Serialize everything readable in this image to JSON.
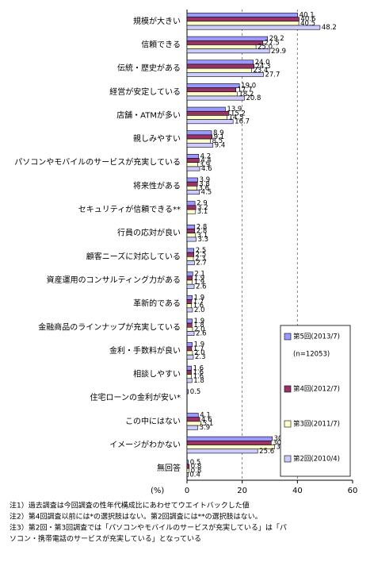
{
  "chart_data": {
    "type": "barh",
    "categories": [
      "規模が大きい",
      "信頼できる",
      "伝統・歴史がある",
      "経営が安定している",
      "店舗・ATMが多い",
      "親しみやすい",
      "パソコンやモバイルのサービスが充実している",
      "将来性がある",
      "セキュリティが信頼できる**",
      "行員の応対が良い",
      "顧客ニーズに対応している",
      "資産運用のコンサルティング力がある",
      "革新的である",
      "金融商品のラインナップが充実している",
      "金利・手数料が良い",
      "相談しやすい",
      "住宅ローンの金利が安い*",
      "この中にはない",
      "イメージがわかない",
      "無回答"
    ],
    "series": [
      {
        "name": "第5回(2013/7)",
        "color": "#9999ff",
        "values": [
          40.1,
          29.2,
          24.0,
          19.0,
          13.9,
          8.9,
          4.2,
          3.9,
          2.9,
          2.8,
          2.5,
          2.1,
          1.9,
          1.9,
          1.9,
          1.6,
          0.5,
          4.1,
          30.9,
          0.5
        ],
        "value_labels": [
          "40.1",
          "29.2",
          "24.0",
          "19.0",
          "13.9",
          "8.9",
          "4.2",
          "3.9",
          "2.9",
          "2.8",
          "2.5",
          "2.1",
          "1.9",
          "1.9",
          "1.9",
          "1.6",
          "0.5",
          "4.1",
          "30.9",
          "0.5"
        ]
      },
      {
        "name": "第4回(2012/7)",
        "color": "#993366",
        "values": [
          40.6,
          27.5,
          24.3,
          17.7,
          15.2,
          9.1,
          4.4,
          3.8,
          3.2,
          2.8,
          2.5,
          1.9,
          1.7,
          1.8,
          1.7,
          1.6,
          null,
          4.6,
          30.5,
          0.8
        ],
        "value_labels": [
          "40.6",
          "27.5",
          "24.3",
          "17.7",
          "15.2",
          "9.1",
          "4.4",
          "3.8",
          "3.2",
          "2.8",
          "2.5",
          "1.9",
          "1.7",
          "1.8",
          "1.7",
          "1.6",
          null,
          "4.6",
          "30.5",
          "0.8"
        ]
      },
      {
        "name": "第3回(2011/7)",
        "color": "#ffffcc",
        "values": [
          40.5,
          25.0,
          23.4,
          18.2,
          14.5,
          8.5,
          3.9,
          3.6,
          3.1,
          3.1,
          2.3,
          1.9,
          1.6,
          2.0,
          2.0,
          1.6,
          null,
          5.1,
          31.7,
          0.8
        ],
        "value_labels": [
          "40.5",
          "25.0",
          "23.4",
          "18.2",
          "14.5",
          "8.5",
          "3.9",
          "3.6",
          "3.1",
          "3.1",
          "2.3",
          "1.9",
          "1.6",
          "2.0",
          "2.0",
          "1.6",
          null,
          "5.1",
          "31.7",
          "0.8"
        ]
      },
      {
        "name": "第2回(2010/4)",
        "color": "#ccccff",
        "values": [
          48.2,
          29.9,
          27.7,
          20.8,
          16.7,
          9.4,
          4.6,
          4.5,
          null,
          3.3,
          2.7,
          2.6,
          2.0,
          2.6,
          2.3,
          1.8,
          null,
          3.9,
          25.6,
          0.4
        ],
        "value_labels": [
          "48.2",
          "29.9",
          "27.7",
          "20.8",
          "16.7",
          "9.4",
          "4.6",
          "4.5",
          null,
          "3.3",
          "2.7",
          "2.6",
          "2.0",
          "2.6",
          "2.3",
          "1.8",
          null,
          "3.9",
          "25.6",
          "0.4"
        ]
      }
    ],
    "legend_note": "(n=12053)",
    "xlabel": "(%)",
    "xlim": [
      0,
      60
    ],
    "xticks": [
      0,
      20,
      40,
      60
    ],
    "grid": true,
    "legend": "lower right",
    "notes": [
      "注1）過去調査は今回調査の性年代構成比にあわせてウエイトバックした値",
      "注2）第4回調査以前には*の選択肢はない。第2回調査には**の選択肢はない。",
      "注3）第2回・第3回調査では「パソコンやモバイルのサービスが充実している」は「パ",
      "ソコン・携帯電話のサービスが充実している」となっている"
    ]
  }
}
